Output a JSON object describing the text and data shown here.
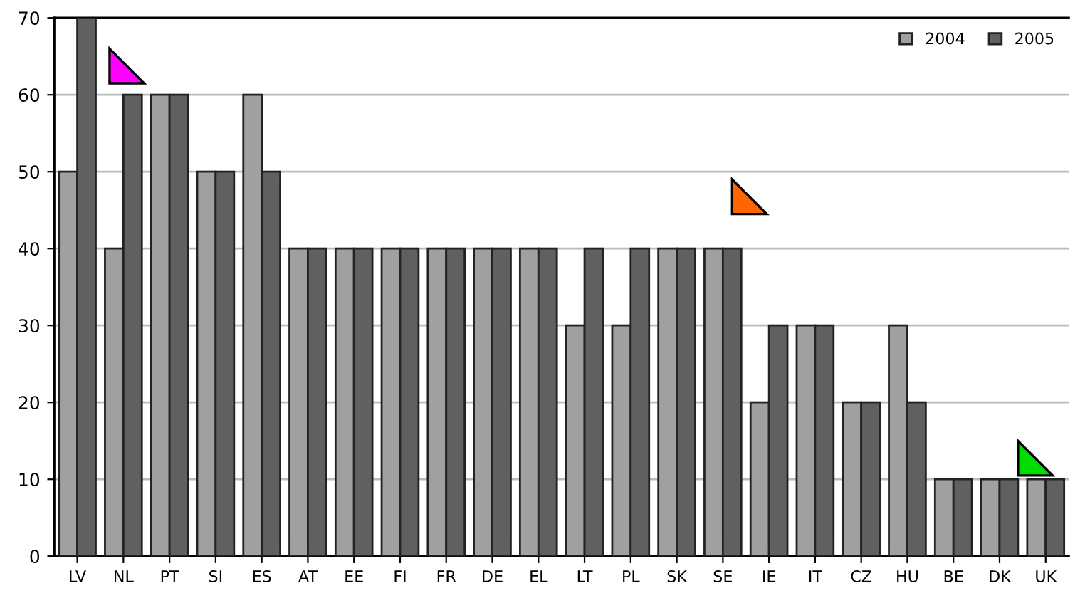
{
  "chart_data": {
    "type": "bar",
    "categories": [
      "LV",
      "NL",
      "PT",
      "SI",
      "ES",
      "AT",
      "EE",
      "FI",
      "FR",
      "DE",
      "EL",
      "LT",
      "PL",
      "SK",
      "SE",
      "IE",
      "IT",
      "CZ",
      "HU",
      "BE",
      "DK",
      "UK"
    ],
    "series": [
      {
        "name": "2004",
        "color": "#a0a0a0",
        "values": [
          50,
          40,
          60,
          50,
          60,
          40,
          40,
          40,
          40,
          40,
          40,
          30,
          30,
          40,
          40,
          20,
          30,
          20,
          30,
          10,
          10,
          10
        ]
      },
      {
        "name": "2005",
        "color": "#606060",
        "values": [
          70,
          60,
          60,
          50,
          50,
          40,
          40,
          40,
          40,
          40,
          40,
          40,
          40,
          40,
          40,
          30,
          30,
          20,
          20,
          10,
          10,
          10
        ]
      }
    ],
    "ylim": [
      0,
      70
    ],
    "yticks": [
      0,
      10,
      20,
      30,
      40,
      50,
      60,
      70
    ],
    "grid": "y",
    "legend": "top right"
  }
}
